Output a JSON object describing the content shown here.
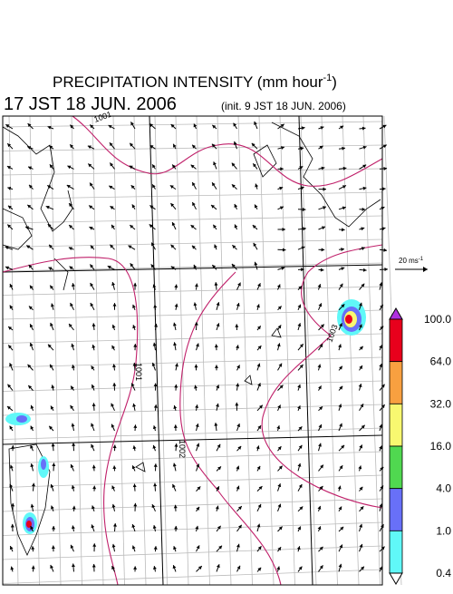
{
  "header": {
    "title": "PRECIPITATION INTENSITY (mm hour",
    "title_sup": "-1",
    "title_end": ")",
    "valid_time": "17 JST 18 JUN. 2006",
    "init_time": "(init. 9 JST 18 JUN. 2006)"
  },
  "map": {
    "isobar_labels": [
      "1001",
      "1001",
      "1002",
      "1003"
    ]
  },
  "vector_scale": {
    "label": "20 ms",
    "label_sup": "-1"
  },
  "colorbar": {
    "labels": [
      "100.0",
      "64.0",
      "32.0",
      "16.0",
      "4.0",
      "1.0",
      "0.4"
    ],
    "colors": [
      "#b030e0",
      "#e8001c",
      "#f8a040",
      "#f8f870",
      "#50d850",
      "#6870f8",
      "#60f8f8",
      "#ffffff"
    ]
  }
}
